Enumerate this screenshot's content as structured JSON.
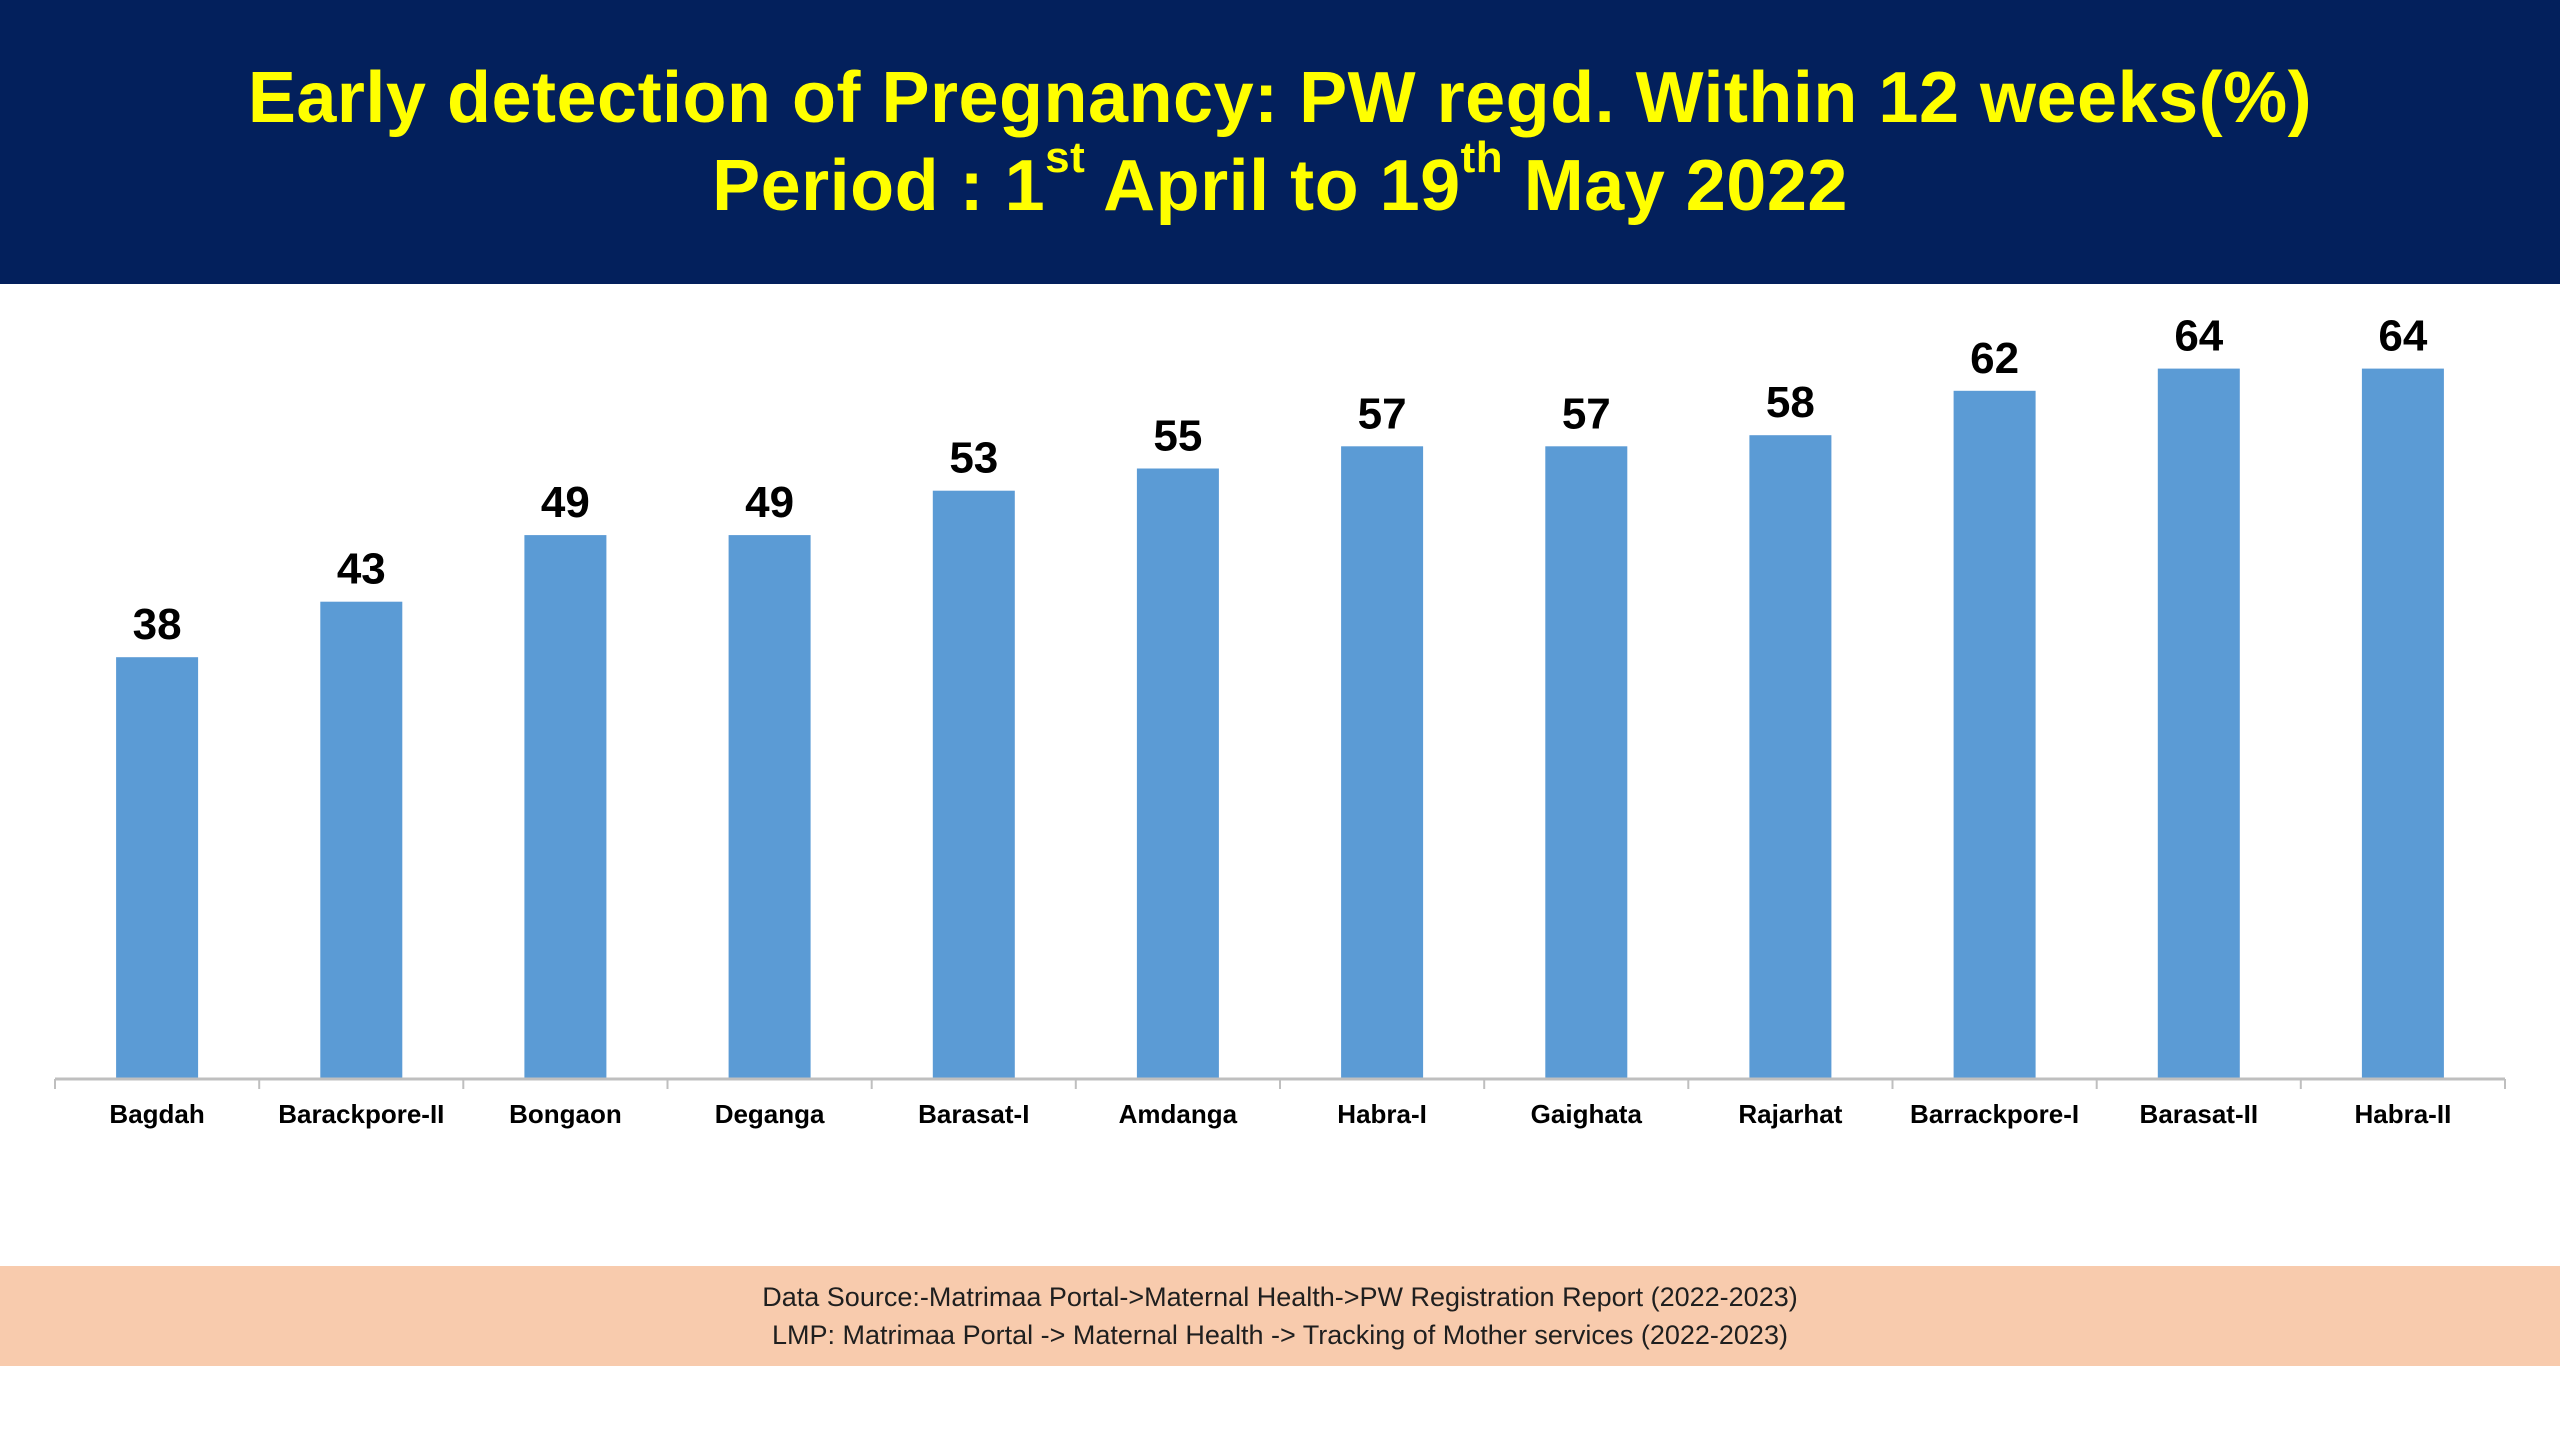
{
  "header": {
    "title_line1": "Early detection of Pregnancy: PW regd. Within 12 weeks(%)",
    "period_label": "Period : 1",
    "period_sup1": "st",
    "period_mid": " April to 19",
    "period_sup2": "th",
    "period_end": " May 2022"
  },
  "colors": {
    "banner_bg": "#03205c",
    "title_text": "#ffff00",
    "bar_fill": "#5b9bd5",
    "source_bg": "#f8cbad",
    "axis": "#bfbfbf"
  },
  "chart_data": {
    "type": "bar",
    "categories": [
      "Bagdah",
      "Barackpore-II",
      "Bongaon",
      "Deganga",
      "Barasat-I",
      "Amdanga",
      "Habra-I",
      "Gaighata",
      "Rajarhat",
      "Barrackpore-I",
      "Barasat-II",
      "Habra-II"
    ],
    "values": [
      38,
      43,
      49,
      49,
      53,
      55,
      57,
      57,
      58,
      62,
      64,
      64
    ],
    "data_labels": [
      "38",
      "43",
      "49",
      "49",
      "53",
      "55",
      "57",
      "57",
      "58",
      "62",
      "64",
      "64"
    ],
    "ylim": [
      0,
      70
    ],
    "grid": false,
    "legend": "none"
  },
  "footer": {
    "source_line1": "Data Source:-Matrimaa Portal->Maternal Health->PW Registration Report (2022-2023)",
    "source_line2": "LMP: Matrimaa Portal -> Maternal Health -> Tracking of Mother services (2022-2023)"
  }
}
